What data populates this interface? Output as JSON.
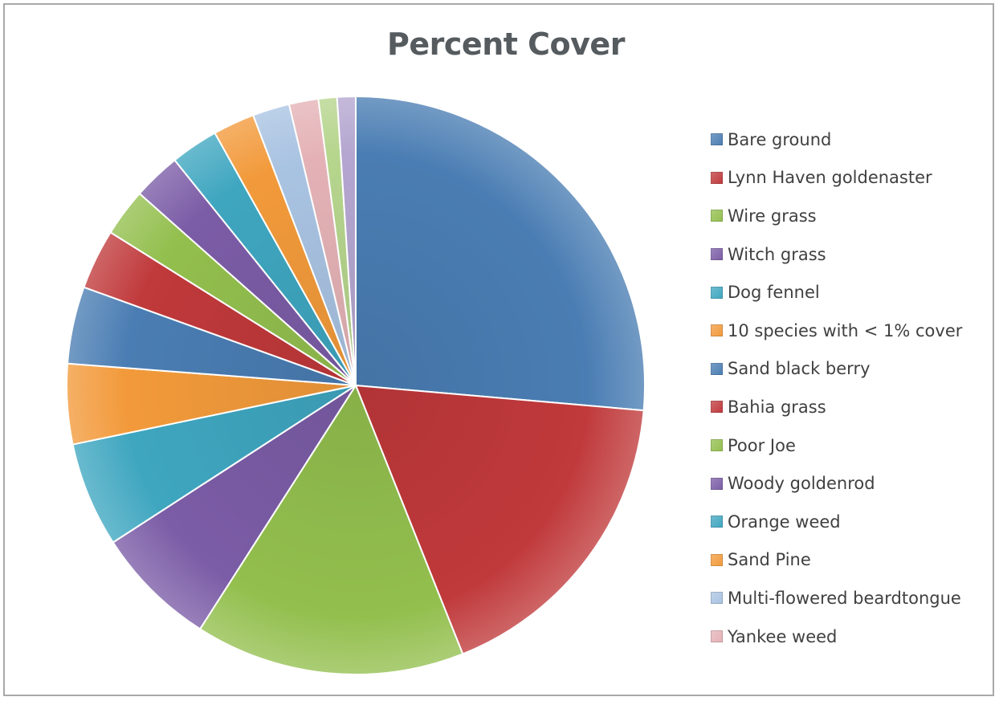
{
  "chart_data": {
    "type": "pie",
    "title": "Percent Cover",
    "legend_position": "right",
    "slices": [
      {
        "label": "Bare ground",
        "value": 30.6,
        "color": "#4a7db3"
      },
      {
        "label": "Lynn Haven goldenaster",
        "value": 20.4,
        "color": "#c0393b"
      },
      {
        "label": "Wire grass",
        "value": 17.5,
        "color": "#93bf4e"
      },
      {
        "label": "Witch grass",
        "value": 7.9,
        "color": "#7b5ca6"
      },
      {
        "label": "Dog fennel",
        "value": 6.8,
        "color": "#3fa6c0"
      },
      {
        "label": "10 species with < 1% cover",
        "value": 5.2,
        "color": "#f29a3b"
      },
      {
        "label": "Sand black berry",
        "value": 5.0,
        "color": "#4a7db3"
      },
      {
        "label": "Bahia grass",
        "value": 3.9,
        "color": "#c0393b"
      },
      {
        "label": "Poor Joe",
        "value": 3.1,
        "color": "#93bf4e"
      },
      {
        "label": "Woody goldenrod",
        "value": 3.1,
        "color": "#7b5ca6"
      },
      {
        "label": "Orange weed",
        "value": 3.1,
        "color": "#3fa6c0"
      },
      {
        "label": "Sand Pine",
        "value": 2.7,
        "color": "#f29a3b"
      },
      {
        "label": "Multi-flowered beardtongue",
        "value": 2.4,
        "color": "#a9c3e2"
      },
      {
        "label": "Yankee weed",
        "value": 1.9,
        "color": "#e4b2b6"
      },
      {
        "label": "",
        "value": 1.2,
        "color": "#b6d58d"
      },
      {
        "label": "",
        "value": 1.2,
        "color": "#b4a6d0"
      }
    ]
  }
}
